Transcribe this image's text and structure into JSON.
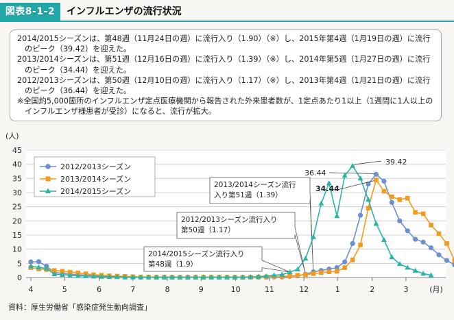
{
  "header": {
    "figure_number": "図表8-1-2",
    "title": "インフルエンザの流行状況"
  },
  "notes": [
    "2014/2015シーズンは、第48週（11月24日の週）に流行入り（1.90）（※）し、2015年第4週（1月19日の週）に流行のピーク（39.42）を迎えた。",
    "2013/2014シーズンは、第51週（12月16日の週）に流行入り（1.39）（※）し、2014年第5週（1月27日の週）に流行のピーク（34.44）を迎えた。",
    "2012/2013シーズンは、第50週（12月10日の週）に流行入り（1.17）（※）し、2013年第4週（1月21日の週）に流行のピーク（36.44）を迎えた。",
    "※全国約5,000箇所のインフルエンザ定点医療機関から報告された外来患者数が、1定点あたり1以上（1週間に1人以上のインフルエンザ様患者が受診）になると、流行が拡大。"
  ],
  "source": "資料：厚生労働省「感染症発生動向調査」",
  "chart_data": {
    "type": "line",
    "y_unit_label": "(人)",
    "x_unit_label": "(月)",
    "ylim": [
      0,
      45
    ],
    "yticks": [
      0,
      5,
      10,
      15,
      20,
      25,
      30,
      35,
      40,
      45
    ],
    "xlim": [
      0,
      52
    ],
    "months": [
      {
        "label": "4",
        "pos": 0
      },
      {
        "label": "5",
        "pos": 4.3
      },
      {
        "label": "6",
        "pos": 8.7
      },
      {
        "label": "7",
        "pos": 13.0
      },
      {
        "label": "8",
        "pos": 17.4
      },
      {
        "label": "9",
        "pos": 21.7
      },
      {
        "label": "10",
        "pos": 26.1
      },
      {
        "label": "11",
        "pos": 30.4
      },
      {
        "label": "12",
        "pos": 34.8
      },
      {
        "label": "1",
        "pos": 39.1
      },
      {
        "label": "2",
        "pos": 43.5
      },
      {
        "label": "3",
        "pos": 47.8
      }
    ],
    "legend": [
      "2012/2013シーズン",
      "2013/2014シーズン",
      "2014/2015シーズン"
    ],
    "series": [
      {
        "name": "2012/2013シーズン",
        "color": "#6b8fd1",
        "marker": "circle",
        "values": [
          5.5,
          5.6,
          4.0,
          1.8,
          1.5,
          1.2,
          1.0,
          0.8,
          0.6,
          0.5,
          0.4,
          0.3,
          0.2,
          0.2,
          0.1,
          0.1,
          0.1,
          0.1,
          0.1,
          0.1,
          0.1,
          0.1,
          0.1,
          0.1,
          0.1,
          0.1,
          0.1,
          0.1,
          0.1,
          0.1,
          0.1,
          0.2,
          0.2,
          0.4,
          0.6,
          1.17,
          2.0,
          2.5,
          3.0,
          3.5,
          5.5,
          12.0,
          22.0,
          33.0,
          36.44,
          34.0,
          26.5,
          20.0,
          16.5,
          13.5,
          12.5,
          10.5,
          8.0,
          6.0,
          4.5,
          2.5
        ]
      },
      {
        "name": "2013/2014シーズン",
        "color": "#f39a1c",
        "marker": "square",
        "values": [
          3.5,
          3.0,
          2.8,
          2.5,
          2.2,
          1.9,
          1.6,
          1.3,
          1.0,
          0.8,
          0.6,
          0.5,
          0.4,
          0.3,
          0.2,
          0.2,
          0.1,
          0.1,
          0.1,
          0.1,
          0.1,
          0.1,
          0.1,
          0.1,
          0.1,
          0.1,
          0.1,
          0.1,
          0.1,
          0.2,
          0.2,
          0.3,
          0.4,
          0.5,
          0.8,
          1.0,
          1.39,
          1.7,
          2.0,
          2.2,
          3.5,
          6.2,
          11.5,
          24.5,
          34.44,
          30.5,
          28.5,
          27.5,
          28.0,
          23.0,
          22.5,
          18.5,
          15.5,
          12.0,
          6.0
        ]
      },
      {
        "name": "2014/2015シーズン",
        "color": "#2bb3a6",
        "marker": "triangle",
        "values": [
          4.0,
          3.6,
          3.2,
          1.2,
          1.0,
          0.8,
          0.6,
          0.5,
          0.4,
          0.3,
          0.2,
          0.2,
          0.1,
          0.1,
          0.1,
          0.1,
          0.1,
          0.1,
          0.1,
          0.1,
          0.1,
          0.1,
          0.1,
          0.1,
          0.1,
          0.1,
          0.1,
          0.1,
          0.2,
          0.3,
          0.5,
          0.8,
          1.0,
          1.9,
          2.9,
          6.7,
          14.3,
          26.2,
          33.3,
          21.7,
          36.0,
          39.42,
          35.0,
          27.5,
          19.0,
          13.3,
          7.2,
          4.8,
          3.5,
          2.4,
          1.4,
          0.8
        ]
      }
    ],
    "peak_labels": [
      {
        "text": "39.42",
        "bold": false
      },
      {
        "text": "36.44",
        "bold": false
      },
      {
        "text": "34.44",
        "bold": true
      }
    ],
    "callouts": [
      {
        "lines": [
          "2013/2014シーズン流行",
          "入り第51週（1.39）"
        ]
      },
      {
        "lines": [
          "2012/2013シーズン流行入り",
          "第50週（1.17）"
        ]
      },
      {
        "lines": [
          "2014/2015シーズン流行入り",
          "第48週（1.9）"
        ]
      }
    ]
  }
}
